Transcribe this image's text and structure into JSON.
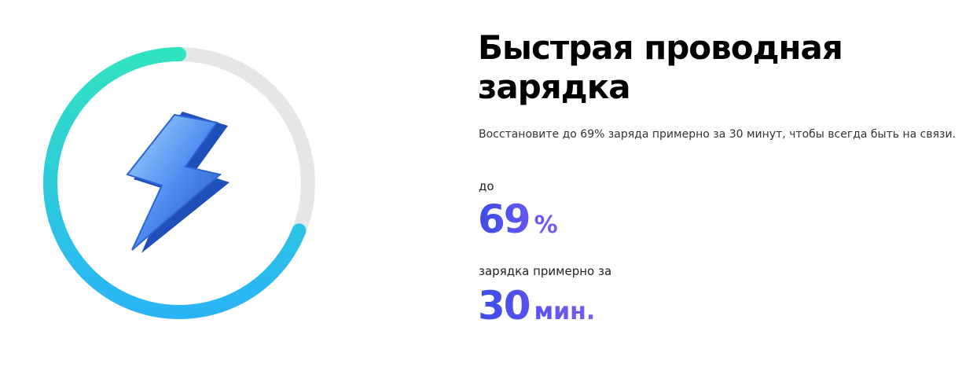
{
  "title": "Быстрая проводная зарядка",
  "description": "Восстановите до 69% заряда примерно за 30 минут, чтобы всегда быть на связи.",
  "stats": [
    {
      "prefix": "до",
      "value": 69,
      "unit": "%"
    },
    {
      "prefix": "зарядка примерно за",
      "value": 30,
      "unit": "мин."
    }
  ]
}
